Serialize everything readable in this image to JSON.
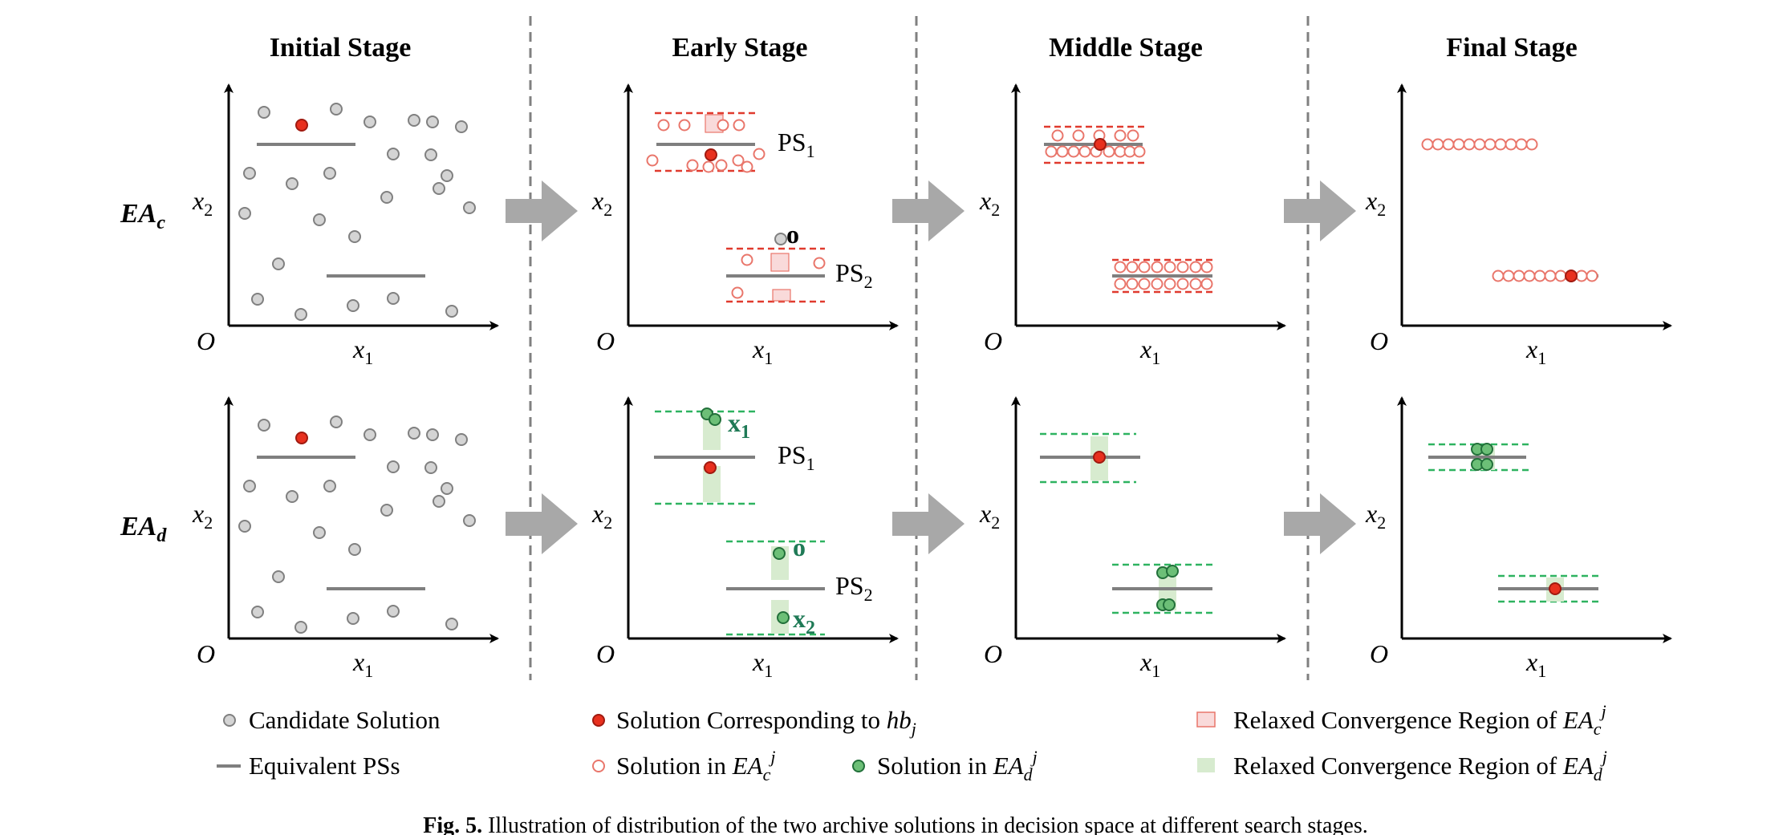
{
  "stages": [
    "Initial Stage",
    "Early Stage",
    "Middle Stage",
    "Final Stage"
  ],
  "rows": [
    {
      "main": "EA",
      "sub": "c"
    },
    {
      "main": "EA",
      "sub": "d"
    }
  ],
  "axes": {
    "origin": "O",
    "x": "x",
    "x_sub": "1",
    "y": "x",
    "y_sub": "2"
  },
  "labels": {
    "ps": "PS",
    "ps1_sub": "1",
    "ps2_sub": "2",
    "o": "o",
    "bold_x": "x",
    "bold_x1_sub": "1",
    "bold_x2_sub": "2"
  },
  "legend": {
    "candidate": "Candidate Solution",
    "equivalent": "Equivalent PSs",
    "hb_prefix": "Solution Corresponding to ",
    "hb_var": "hb",
    "hb_sub": "j",
    "in_c_prefix": "Solution in ",
    "in_d_prefix": "Solution in ",
    "ea": "EA",
    "c": "c",
    "d": "d",
    "j": "j",
    "region_c_prefix": "Relaxed Convergence Region of ",
    "region_d_prefix": "Relaxed Convergence Region of "
  },
  "caption": {
    "label": "Fig. 5.",
    "text": "Illustration of distribution of the two archive solutions in decision space at different search stages."
  },
  "colors": {
    "grey_fill": "#d4d4d4",
    "grey_stroke": "#808080",
    "ps_line": "#7f7f7f",
    "axis": "#000000",
    "red_fill": "#e8301e",
    "red_stroke": "#a01a10",
    "ring_red": "#e9766b",
    "dash_red": "#e03a2e",
    "region_red": "#f9dada",
    "green_fill": "#6cbf77",
    "green_stroke": "#22703a",
    "dash_green": "#2eb360",
    "region_green": "#d7ebcf",
    "label_green": "#1f7a56",
    "arrow": "#a8a8a8",
    "divider": "#808080"
  }
}
